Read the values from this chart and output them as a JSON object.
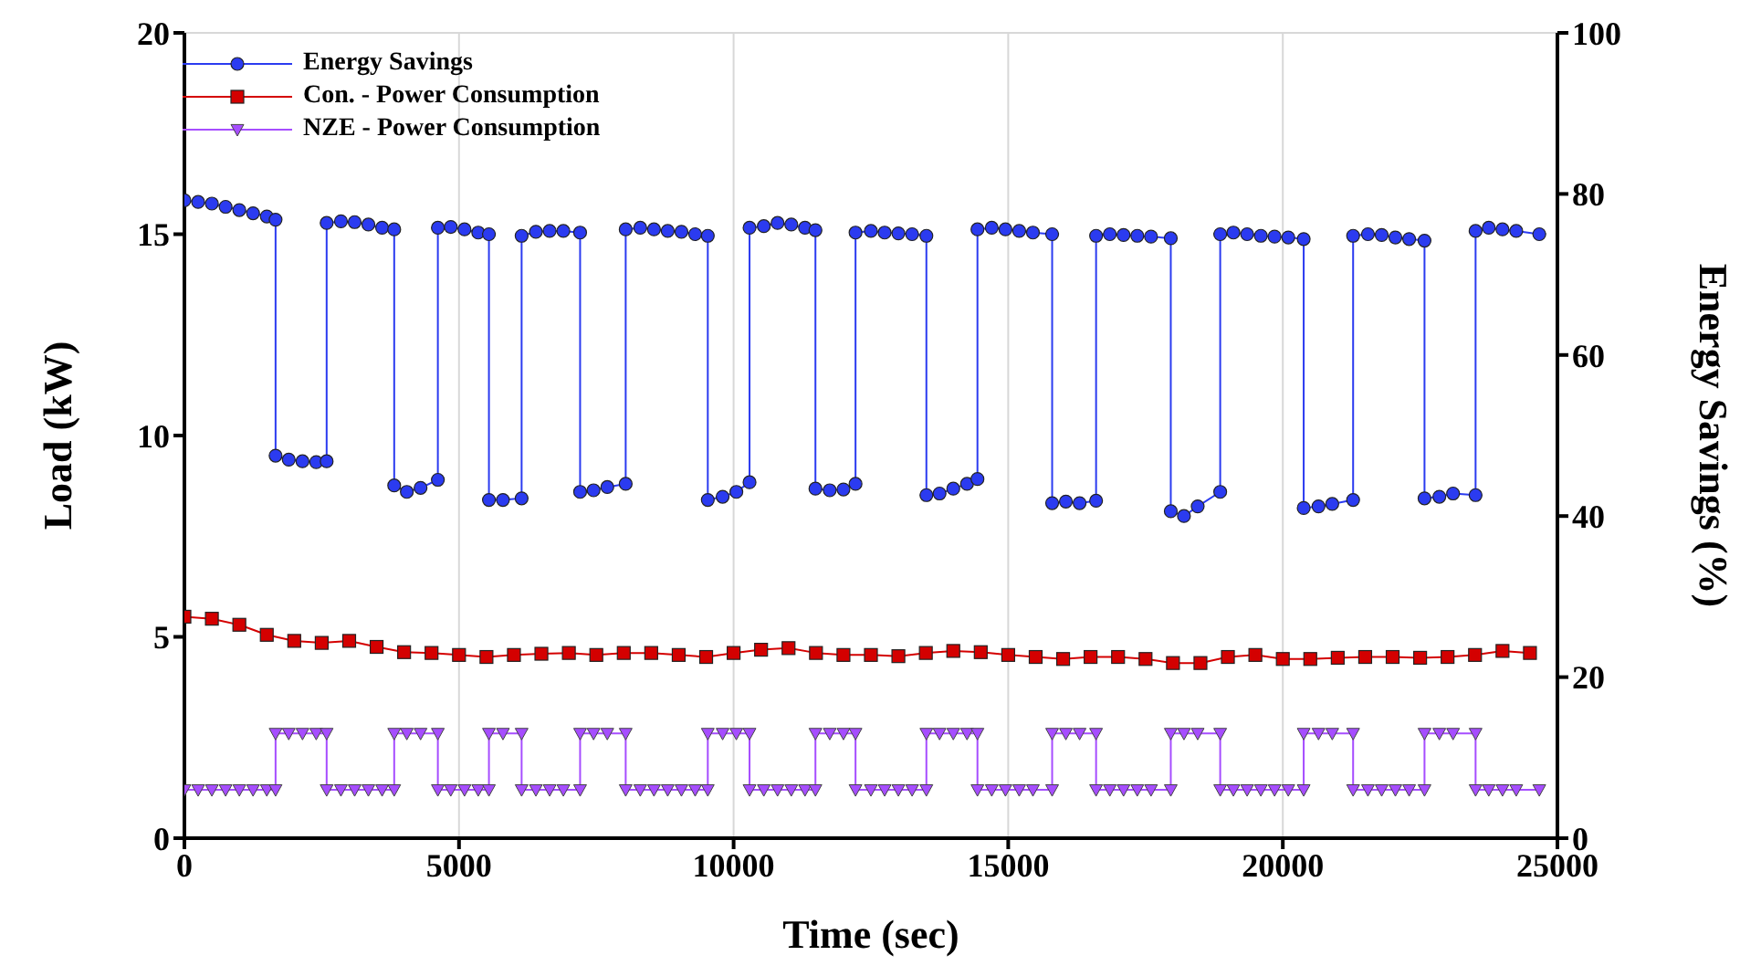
{
  "chart_data": {
    "type": "line",
    "xlabel": "Time (sec)",
    "ylabel": "Load (kW)",
    "y2label": "Energy Savings (%)",
    "xlim": [
      0,
      25000
    ],
    "xticks": [
      0,
      5000,
      10000,
      15000,
      20000,
      25000
    ],
    "ylim": [
      0,
      20
    ],
    "yticks": [
      0,
      5,
      10,
      15,
      20
    ],
    "y2lim": [
      0,
      100
    ],
    "y2ticks": [
      0,
      20,
      40,
      60,
      80,
      100
    ],
    "grid": true,
    "legend": "top left",
    "series": [
      {
        "name": "Energy Savings",
        "color": "#2b3bf0",
        "marker": "circle",
        "axis": "y2",
        "x": [
          0,
          250,
          500,
          750,
          1000,
          1250,
          1500,
          1660,
          1660,
          1900,
          2150,
          2400,
          2590,
          2590,
          2850,
          3100,
          3350,
          3600,
          3820,
          3820,
          4050,
          4300,
          4615,
          4615,
          4850,
          5100,
          5350,
          5545,
          5545,
          5800,
          6140,
          6140,
          6400,
          6650,
          6900,
          7205,
          7205,
          7450,
          7700,
          8035,
          8035,
          8300,
          8550,
          8800,
          9050,
          9300,
          9530,
          9530,
          9800,
          10050,
          10290,
          10290,
          10550,
          10800,
          11050,
          11300,
          11490,
          11490,
          11750,
          12000,
          12220,
          12220,
          12500,
          12750,
          13000,
          13250,
          13510,
          13510,
          13750,
          14000,
          14250,
          14440,
          14440,
          14700,
          14950,
          15200,
          15450,
          15800,
          15800,
          16050,
          16300,
          16600,
          16600,
          16850,
          17100,
          17350,
          17600,
          17960,
          17960,
          18200,
          18450,
          18860,
          18860,
          19100,
          19350,
          19600,
          19850,
          20100,
          20380,
          20380,
          20650,
          20900,
          21280,
          21280,
          21550,
          21800,
          22050,
          22300,
          22580,
          22580,
          22850,
          23100,
          23510,
          23510,
          23750,
          24000,
          24250,
          24670
        ],
        "values": [
          79.2,
          79,
          78.8,
          78.4,
          78,
          77.6,
          77.2,
          76.8,
          47.5,
          47,
          46.8,
          46.7,
          46.8,
          76.4,
          76.6,
          76.5,
          76.2,
          75.8,
          75.6,
          43.8,
          43,
          43.5,
          44.5,
          75.8,
          75.9,
          75.6,
          75.2,
          75,
          42,
          42,
          42.2,
          74.8,
          75.3,
          75.4,
          75.4,
          75.2,
          43,
          43.2,
          43.6,
          44,
          75.6,
          75.8,
          75.6,
          75.4,
          75.3,
          75,
          74.8,
          42,
          42.4,
          43,
          44.2,
          75.8,
          76,
          76.4,
          76.2,
          75.8,
          75.5,
          43.4,
          43.2,
          43.3,
          44,
          75.2,
          75.4,
          75.2,
          75.1,
          75,
          74.8,
          42.6,
          42.8,
          43.4,
          44,
          44.6,
          75.6,
          75.8,
          75.6,
          75.4,
          75.2,
          75,
          41.6,
          41.8,
          41.6,
          41.9,
          74.8,
          75,
          74.9,
          74.8,
          74.7,
          74.5,
          40.6,
          40,
          41.2,
          43,
          75,
          75.2,
          75,
          74.8,
          74.7,
          74.6,
          74.4,
          41,
          41.2,
          41.5,
          42,
          74.8,
          75,
          74.9,
          74.6,
          74.4,
          74.2,
          42.2,
          42.4,
          42.8,
          42.6,
          75.4,
          75.8,
          75.6,
          75.4,
          75
        ]
      },
      {
        "name": "Con. - Power Consumption",
        "color": "#d40000",
        "marker": "square",
        "x": [
          0,
          500,
          1000,
          1500,
          2000,
          2500,
          3000,
          3500,
          4000,
          4500,
          5000,
          5500,
          6000,
          6500,
          7000,
          7500,
          8000,
          8500,
          9000,
          9500,
          10000,
          10500,
          11000,
          11500,
          12000,
          12500,
          13000,
          13500,
          14000,
          14500,
          15000,
          15500,
          16000,
          16500,
          17000,
          17500,
          18000,
          18500,
          19000,
          19500,
          20000,
          20500,
          21000,
          21500,
          22000,
          22500,
          23000,
          23500,
          24000,
          24500
        ],
        "values": [
          5.5,
          5.45,
          5.3,
          5.05,
          4.9,
          4.85,
          4.9,
          4.75,
          4.62,
          4.6,
          4.55,
          4.5,
          4.55,
          4.58,
          4.6,
          4.55,
          4.6,
          4.6,
          4.55,
          4.5,
          4.6,
          4.68,
          4.72,
          4.6,
          4.55,
          4.55,
          4.52,
          4.6,
          4.65,
          4.62,
          4.55,
          4.5,
          4.45,
          4.5,
          4.5,
          4.45,
          4.35,
          4.35,
          4.5,
          4.55,
          4.45,
          4.45,
          4.48,
          4.5,
          4.5,
          4.48,
          4.5,
          4.55,
          4.65,
          4.6
        ]
      },
      {
        "name": "NZE - Power Consumption",
        "color": "#a64dff",
        "marker": "triangle",
        "x": [
          0,
          250,
          500,
          750,
          1000,
          1250,
          1500,
          1660,
          1660,
          1900,
          2150,
          2400,
          2590,
          2590,
          2850,
          3100,
          3350,
          3600,
          3820,
          3820,
          4050,
          4300,
          4615,
          4615,
          4850,
          5100,
          5350,
          5545,
          5545,
          5800,
          6140,
          6140,
          6400,
          6650,
          6900,
          7205,
          7205,
          7450,
          7700,
          8035,
          8035,
          8300,
          8550,
          8800,
          9050,
          9300,
          9530,
          9530,
          9800,
          10050,
          10290,
          10290,
          10550,
          10800,
          11050,
          11300,
          11490,
          11490,
          11750,
          12000,
          12220,
          12220,
          12500,
          12750,
          13000,
          13250,
          13510,
          13510,
          13750,
          14000,
          14250,
          14440,
          14440,
          14700,
          14950,
          15200,
          15450,
          15800,
          15800,
          16050,
          16300,
          16600,
          16600,
          16850,
          17100,
          17350,
          17600,
          17960,
          17960,
          18200,
          18450,
          18860,
          18860,
          19100,
          19350,
          19600,
          19850,
          20100,
          20380,
          20380,
          20650,
          20900,
          21280,
          21280,
          21550,
          21800,
          22050,
          22300,
          22580,
          22580,
          22850,
          23100,
          23510,
          23510,
          23750,
          24000,
          24250,
          24670
        ],
        "values": [
          1.2,
          1.2,
          1.2,
          1.2,
          1.2,
          1.2,
          1.2,
          1.2,
          2.6,
          2.6,
          2.6,
          2.6,
          2.6,
          1.2,
          1.2,
          1.2,
          1.2,
          1.2,
          1.2,
          2.6,
          2.6,
          2.6,
          2.6,
          1.2,
          1.2,
          1.2,
          1.2,
          1.2,
          2.6,
          2.6,
          2.6,
          1.2,
          1.2,
          1.2,
          1.2,
          1.2,
          2.6,
          2.6,
          2.6,
          2.6,
          1.2,
          1.2,
          1.2,
          1.2,
          1.2,
          1.2,
          1.2,
          2.6,
          2.6,
          2.6,
          2.6,
          1.2,
          1.2,
          1.2,
          1.2,
          1.2,
          1.2,
          2.6,
          2.6,
          2.6,
          2.6,
          1.2,
          1.2,
          1.2,
          1.2,
          1.2,
          1.2,
          2.6,
          2.6,
          2.6,
          2.6,
          2.6,
          1.2,
          1.2,
          1.2,
          1.2,
          1.2,
          1.2,
          2.6,
          2.6,
          2.6,
          2.6,
          1.2,
          1.2,
          1.2,
          1.2,
          1.2,
          1.2,
          2.6,
          2.6,
          2.6,
          2.6,
          1.2,
          1.2,
          1.2,
          1.2,
          1.2,
          1.2,
          1.2,
          2.6,
          2.6,
          2.6,
          2.6,
          1.2,
          1.2,
          1.2,
          1.2,
          1.2,
          1.2,
          2.6,
          2.6,
          2.6,
          2.6,
          1.2,
          1.2,
          1.2,
          1.2,
          1.2
        ]
      }
    ]
  }
}
